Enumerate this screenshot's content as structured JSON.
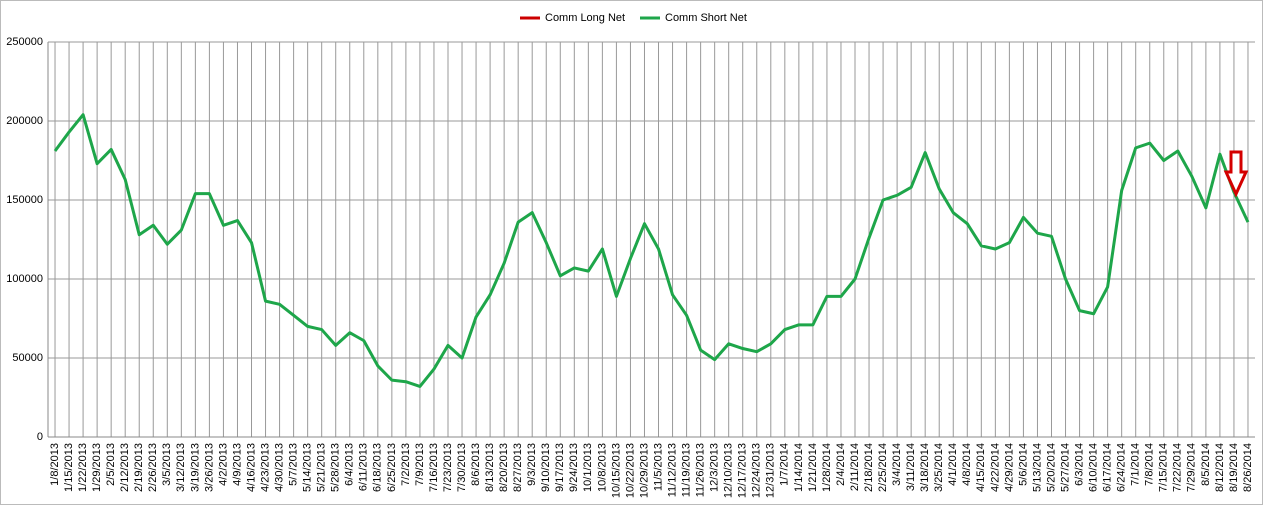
{
  "chart_data": {
    "type": "line",
    "categories": [
      "1/8/2013",
      "1/15/2013",
      "1/22/2013",
      "1/29/2013",
      "2/5/2013",
      "2/12/2013",
      "2/19/2013",
      "2/26/2013",
      "3/5/2013",
      "3/12/2013",
      "3/19/2013",
      "3/26/2013",
      "4/2/2013",
      "4/9/2013",
      "4/16/2013",
      "4/23/2013",
      "4/30/2013",
      "5/7/2013",
      "5/14/2013",
      "5/21/2013",
      "5/28/2013",
      "6/4/2013",
      "6/11/2013",
      "6/18/2013",
      "6/25/2013",
      "7/2/2013",
      "7/9/2013",
      "7/16/2013",
      "7/23/2013",
      "7/30/2013",
      "8/6/2013",
      "8/13/2013",
      "8/20/2013",
      "8/27/2013",
      "9/3/2013",
      "9/10/2013",
      "9/17/2013",
      "9/24/2013",
      "10/1/2013",
      "10/8/2013",
      "10/15/2013",
      "10/22/2013",
      "10/29/2013",
      "11/5/2013",
      "11/12/2013",
      "11/19/2013",
      "11/26/2013",
      "12/3/2013",
      "12/10/2013",
      "12/17/2013",
      "12/24/2013",
      "12/31/2013",
      "1/7/2014",
      "1/14/2014",
      "1/21/2014",
      "1/28/2014",
      "2/4/2014",
      "2/11/2014",
      "2/18/2014",
      "2/25/2014",
      "3/4/2014",
      "3/11/2014",
      "3/18/2014",
      "3/25/2014",
      "4/1/2014",
      "4/8/2014",
      "4/15/2014",
      "4/22/2014",
      "4/29/2014",
      "5/6/2014",
      "5/13/2014",
      "5/20/2014",
      "5/27/2014",
      "6/3/2014",
      "6/10/2014",
      "6/17/2014",
      "6/24/2014",
      "7/1/2014",
      "7/8/2014",
      "7/15/2014",
      "7/22/2014",
      "7/29/2014",
      "8/5/2014",
      "8/12/2014",
      "8/19/2014",
      "8/26/2014"
    ],
    "series": [
      {
        "name": "Comm Long Net",
        "color": "#cc0000",
        "values": [
          null,
          null,
          null,
          null,
          null,
          null,
          null,
          null,
          null,
          null,
          null,
          null,
          null,
          null,
          null,
          null,
          null,
          null,
          null,
          null,
          null,
          null,
          null,
          null,
          null,
          null,
          null,
          null,
          null,
          null,
          null,
          null,
          null,
          null,
          null,
          null,
          null,
          null,
          null,
          null,
          null,
          null,
          null,
          null,
          null,
          null,
          null,
          null,
          null,
          null,
          null,
          null,
          null,
          null,
          null,
          null,
          null,
          null,
          null,
          null,
          null,
          null,
          null,
          null,
          null,
          null,
          null,
          null,
          null,
          null,
          null,
          null,
          null,
          null,
          null,
          null,
          null,
          null,
          null,
          null,
          null,
          null,
          null,
          null,
          null,
          null
        ]
      },
      {
        "name": "Comm Short Net",
        "color": "#1ea64a",
        "values": [
          181000,
          193000,
          204000,
          173000,
          182000,
          163000,
          128000,
          134000,
          122000,
          131000,
          154000,
          154000,
          134000,
          137000,
          123000,
          86000,
          84000,
          77000,
          70000,
          68000,
          58000,
          66000,
          61000,
          45000,
          36000,
          35000,
          32000,
          43000,
          58000,
          50000,
          76000,
          90000,
          110000,
          136000,
          142000,
          123000,
          102000,
          107000,
          105000,
          119000,
          89000,
          113000,
          135000,
          119000,
          90000,
          77000,
          55000,
          49000,
          59000,
          56000,
          54000,
          59000,
          68000,
          71000,
          71000,
          89000,
          89000,
          100000,
          126000,
          150000,
          153000,
          158000,
          180000,
          157000,
          142000,
          135000,
          121000,
          119000,
          123000,
          139000,
          129000,
          127000,
          100000,
          80000,
          78000,
          95000,
          156000,
          183000,
          186000,
          175000,
          181000,
          165000,
          145000,
          179000,
          155000,
          136000
        ]
      }
    ],
    "ylim": [
      0,
      250000
    ],
    "yticks": [
      0,
      50000,
      100000,
      150000,
      200000,
      250000
    ],
    "grid": true,
    "legend": "top"
  }
}
